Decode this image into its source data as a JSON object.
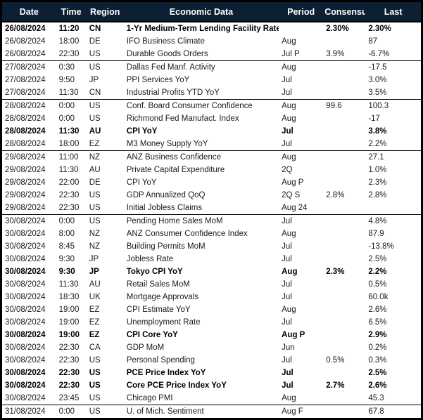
{
  "table": {
    "columns": [
      {
        "key": "date",
        "label": "Date"
      },
      {
        "key": "time",
        "label": "Time"
      },
      {
        "key": "region",
        "label": "Region"
      },
      {
        "key": "economic_data",
        "label": "Economic Data"
      },
      {
        "key": "period",
        "label": "Period"
      },
      {
        "key": "consensus",
        "label": "Consensus"
      },
      {
        "key": "last",
        "label": "Last"
      }
    ],
    "rows": [
      {
        "date": "26/08/2024",
        "time": "11:20",
        "region": "CN",
        "economic_data": "1-Yr Medium-Term Lending Facility Rate",
        "period": "",
        "consensus": "2.30%",
        "last": "2.30%",
        "bold": true,
        "group_start": true
      },
      {
        "date": "26/08/2024",
        "time": "18:00",
        "region": "DE",
        "economic_data": "IFO Business Climate",
        "period": "Aug",
        "consensus": "",
        "last": "87",
        "bold": false,
        "group_start": false
      },
      {
        "date": "26/08/2024",
        "time": "22:30",
        "region": "US",
        "economic_data": "Durable Goods Orders",
        "period": "Jul P",
        "consensus": "3.9%",
        "last": "-6.7%",
        "bold": false,
        "group_start": false
      },
      {
        "date": "27/08/2024",
        "time": "0:30",
        "region": "US",
        "economic_data": "Dallas Fed Manf. Activity",
        "period": "Aug",
        "consensus": "",
        "last": "-17.5",
        "bold": false,
        "group_start": true
      },
      {
        "date": "27/08/2024",
        "time": "9:50",
        "region": "JP",
        "economic_data": "PPI Services YoY",
        "period": "Jul",
        "consensus": "",
        "last": "3.0%",
        "bold": false,
        "group_start": false
      },
      {
        "date": "27/08/2024",
        "time": "11:30",
        "region": "CN",
        "economic_data": "Industrial Profits YTD YoY",
        "period": "Jul",
        "consensus": "",
        "last": "3.5%",
        "bold": false,
        "group_start": false
      },
      {
        "date": "28/08/2024",
        "time": "0:00",
        "region": "US",
        "economic_data": "Conf. Board Consumer Confidence",
        "period": "Aug",
        "consensus": "99.6",
        "last": "100.3",
        "bold": false,
        "group_start": true
      },
      {
        "date": "28/08/2024",
        "time": "0:00",
        "region": "US",
        "economic_data": "Richmond Fed Manufact. Index",
        "period": "Aug",
        "consensus": "",
        "last": "-17",
        "bold": false,
        "group_start": false
      },
      {
        "date": "28/08/2024",
        "time": "11:30",
        "region": "AU",
        "economic_data": "CPI YoY",
        "period": "Jul",
        "consensus": "",
        "last": "3.8%",
        "bold": true,
        "group_start": false
      },
      {
        "date": "28/08/2024",
        "time": "18:00",
        "region": "EZ",
        "economic_data": "M3 Money Supply YoY",
        "period": "Jul",
        "consensus": "",
        "last": "2.2%",
        "bold": false,
        "group_start": false
      },
      {
        "date": "29/08/2024",
        "time": "11:00",
        "region": "NZ",
        "economic_data": "ANZ Business Confidence",
        "period": "Aug",
        "consensus": "",
        "last": "27.1",
        "bold": false,
        "group_start": true
      },
      {
        "date": "29/08/2024",
        "time": "11:30",
        "region": "AU",
        "economic_data": "Private Capital Expenditure",
        "period": "2Q",
        "consensus": "",
        "last": "1.0%",
        "bold": false,
        "group_start": false
      },
      {
        "date": "29/08/2024",
        "time": "22:00",
        "region": "DE",
        "economic_data": "CPI YoY",
        "period": "Aug P",
        "consensus": "",
        "last": "2.3%",
        "bold": false,
        "group_start": false
      },
      {
        "date": "29/08/2024",
        "time": "22:30",
        "region": "US",
        "economic_data": "GDP Annualized QoQ",
        "period": "2Q S",
        "consensus": "2.8%",
        "last": "2.8%",
        "bold": false,
        "group_start": false
      },
      {
        "date": "29/08/2024",
        "time": "22:30",
        "region": "US",
        "economic_data": "Initial Jobless Claims",
        "period": "Aug 24",
        "consensus": "",
        "last": "",
        "bold": false,
        "group_start": false
      },
      {
        "date": "30/08/2024",
        "time": "0:00",
        "region": "US",
        "economic_data": "Pending Home Sales MoM",
        "period": "Jul",
        "consensus": "",
        "last": "4.8%",
        "bold": false,
        "group_start": true
      },
      {
        "date": "30/08/2024",
        "time": "8:00",
        "region": "NZ",
        "economic_data": "ANZ Consumer Confidence Index",
        "period": "Aug",
        "consensus": "",
        "last": "87.9",
        "bold": false,
        "group_start": false
      },
      {
        "date": "30/08/2024",
        "time": "8:45",
        "region": "NZ",
        "economic_data": "Building Permits MoM",
        "period": "Jul",
        "consensus": "",
        "last": "-13.8%",
        "bold": false,
        "group_start": false
      },
      {
        "date": "30/08/2024",
        "time": "9:30",
        "region": "JP",
        "economic_data": "Jobless Rate",
        "period": "Jul",
        "consensus": "",
        "last": "2.5%",
        "bold": false,
        "group_start": false
      },
      {
        "date": "30/08/2024",
        "time": "9:30",
        "region": "JP",
        "economic_data": "Tokyo CPI YoY",
        "period": "Aug",
        "consensus": "2.3%",
        "last": "2.2%",
        "bold": true,
        "group_start": false
      },
      {
        "date": "30/08/2024",
        "time": "11:30",
        "region": "AU",
        "economic_data": "Retail Sales MoM",
        "period": "Jul",
        "consensus": "",
        "last": "0.5%",
        "bold": false,
        "group_start": false
      },
      {
        "date": "30/08/2024",
        "time": "18:30",
        "region": "UK",
        "economic_data": "Mortgage Approvals",
        "period": "Jul",
        "consensus": "",
        "last": "60.0k",
        "bold": false,
        "group_start": false
      },
      {
        "date": "30/08/2024",
        "time": "19:00",
        "region": "EZ",
        "economic_data": "CPI Estimate YoY",
        "period": "Aug",
        "consensus": "",
        "last": "2.6%",
        "bold": false,
        "group_start": false
      },
      {
        "date": "30/08/2024",
        "time": "19:00",
        "region": "EZ",
        "economic_data": "Unemployment Rate",
        "period": "Jul",
        "consensus": "",
        "last": "6.5%",
        "bold": false,
        "group_start": false
      },
      {
        "date": "30/08/2024",
        "time": "19:00",
        "region": "EZ",
        "economic_data": "CPI Core YoY",
        "period": "Aug P",
        "consensus": "",
        "last": "2.9%",
        "bold": true,
        "group_start": false
      },
      {
        "date": "30/08/2024",
        "time": "22:30",
        "region": "CA",
        "economic_data": "GDP MoM",
        "period": "Jun",
        "consensus": "",
        "last": "0.2%",
        "bold": false,
        "group_start": false
      },
      {
        "date": "30/08/2024",
        "time": "22:30",
        "region": "US",
        "economic_data": "Personal Spending",
        "period": "Jul",
        "consensus": "0.5%",
        "last": "0.3%",
        "bold": false,
        "group_start": false
      },
      {
        "date": "30/08/2024",
        "time": "22:30",
        "region": "US",
        "economic_data": "PCE Price Index YoY",
        "period": "Jul",
        "consensus": "",
        "last": "2.5%",
        "bold": true,
        "group_start": false
      },
      {
        "date": "30/08/2024",
        "time": "22:30",
        "region": "US",
        "economic_data": "Core PCE Price Index YoY",
        "period": "Jul",
        "consensus": "2.7%",
        "last": "2.6%",
        "bold": true,
        "group_start": false
      },
      {
        "date": "30/08/2024",
        "time": "23:45",
        "region": "US",
        "economic_data": "Chicago PMI",
        "period": "Aug",
        "consensus": "",
        "last": "45.3",
        "bold": false,
        "group_start": false
      },
      {
        "date": "31/08/2024",
        "time": "0:00",
        "region": "US",
        "economic_data": "U. of Mich. Sentiment",
        "period": "Aug F",
        "consensus": "",
        "last": "67.8",
        "bold": false,
        "group_start": true
      }
    ]
  },
  "colors": {
    "header_bg": "#0d2033",
    "header_text": "#ffffff",
    "border": "#000000",
    "row_text": "#1a1a1a"
  }
}
